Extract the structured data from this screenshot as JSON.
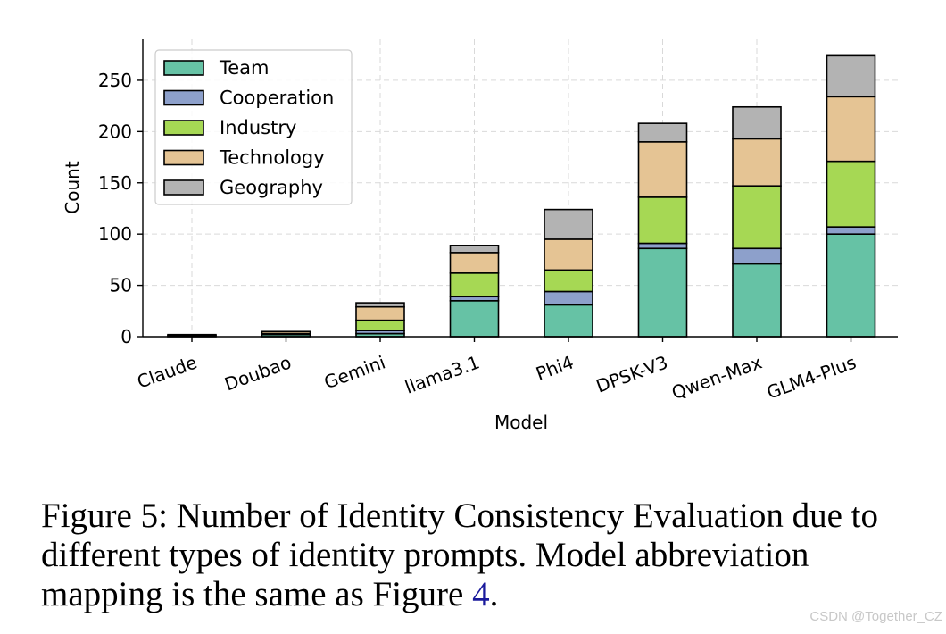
{
  "chart_data": {
    "type": "bar",
    "stacked": true,
    "title": "",
    "xlabel": "Model",
    "ylabel": "Count",
    "ylim": [
      0,
      290
    ],
    "yticks": [
      0,
      50,
      100,
      150,
      200,
      250
    ],
    "grid": true,
    "legend_position": "top-left",
    "categories": [
      "Claude",
      "Doubao",
      "Gemini",
      "llama3.1",
      "Phi4",
      "DPSK-V3",
      "Qwen-Max",
      "GLM4-Plus"
    ],
    "series": [
      {
        "name": "Team",
        "color": "#66c2a5",
        "values": [
          1,
          2,
          3,
          35,
          31,
          86,
          71,
          100
        ]
      },
      {
        "name": "Cooperation",
        "color": "#8da0cb",
        "values": [
          0,
          0,
          3,
          4,
          13,
          5,
          15,
          7
        ]
      },
      {
        "name": "Industry",
        "color": "#a6d854",
        "values": [
          0,
          1,
          10,
          23,
          21,
          45,
          61,
          64
        ]
      },
      {
        "name": "Technology",
        "color": "#e5c494",
        "values": [
          1,
          2,
          13,
          20,
          30,
          54,
          46,
          63
        ]
      },
      {
        "name": "Geography",
        "color": "#b3b3b3",
        "values": [
          0,
          0,
          4,
          7,
          29,
          18,
          31,
          40
        ]
      }
    ]
  },
  "caption": {
    "text": "Figure 5: Number of Identity Consistency Evaluation due to different types of identity prompts. Model abbreviation mapping is the same as Figure ",
    "ref": "4",
    "end": "."
  },
  "watermark": "CSDN @Together_CZ"
}
